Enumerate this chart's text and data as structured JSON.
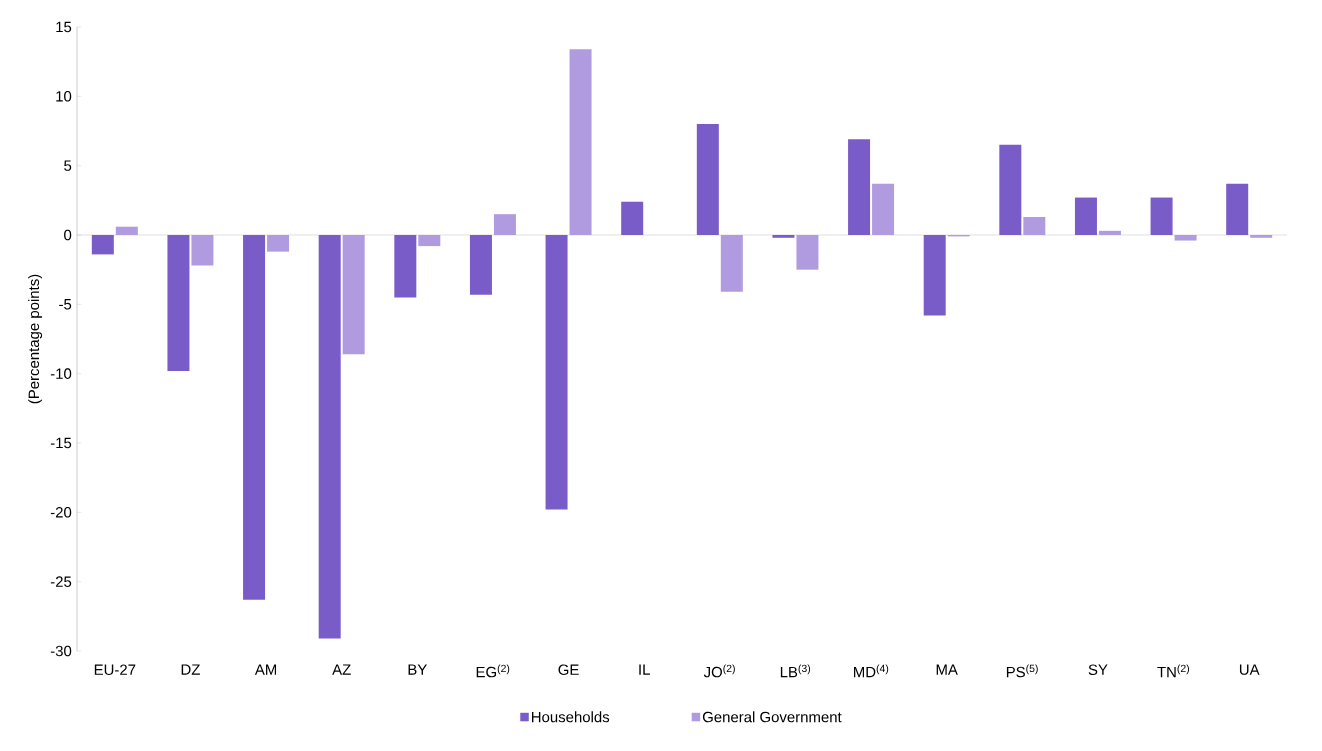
{
  "chart_data": {
    "type": "bar",
    "ylabel": "(Percentage points)",
    "categories": [
      "EU-27",
      "DZ",
      "AM",
      "AZ",
      "BY",
      "EG$^{(2)}$",
      "GE",
      "IL",
      "JO$^{(2)}$",
      "LB$^{(3)}$",
      "MD$^{(4)}$",
      "MA",
      "PS$^{(5)}$",
      "SY",
      "TN$^{(2)}$",
      "UA"
    ],
    "series": [
      {
        "name": "Households",
        "color": "#7a5cc8",
        "values": [
          -1.4,
          -9.8,
          -26.3,
          -29.1,
          -4.5,
          -4.3,
          -19.8,
          2.4,
          8.0,
          -0.2,
          6.9,
          -5.8,
          6.5,
          2.7,
          2.7,
          3.7
        ]
      },
      {
        "name": "General Government",
        "color": "#b09be0",
        "values": [
          0.6,
          -2.2,
          -1.2,
          -8.6,
          -0.8,
          1.5,
          13.4,
          null,
          -4.1,
          -2.5,
          3.7,
          -0.1,
          1.3,
          0.3,
          -0.4,
          -0.2
        ]
      }
    ],
    "ylim": [
      -30,
      15
    ],
    "yticks": [
      -30,
      -25,
      -20,
      -15,
      -10,
      -5,
      0,
      5,
      10,
      15
    ],
    "legend": "bottom"
  }
}
